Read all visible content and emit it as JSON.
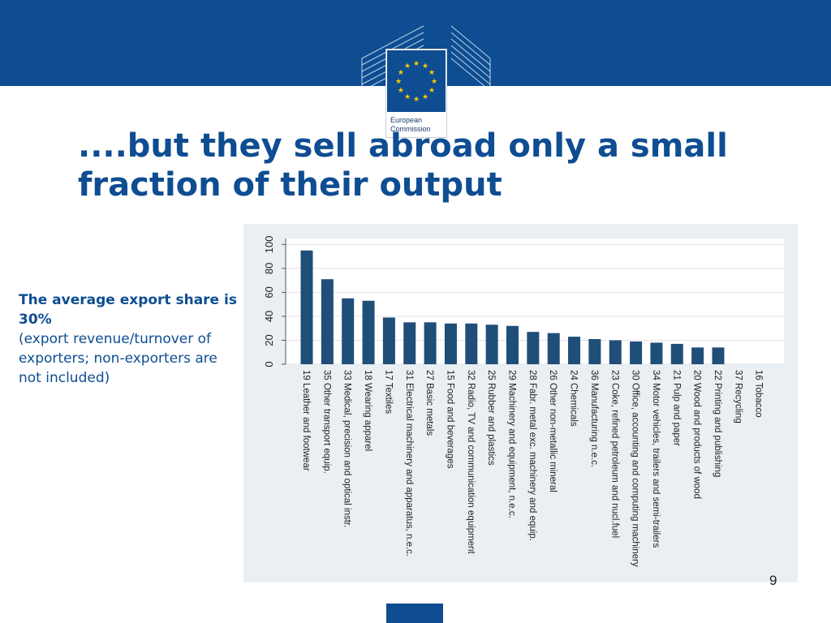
{
  "header": {
    "logo_icon": "eu-flag-icon",
    "logo_line1": "European",
    "logo_line2": "Commission",
    "band_color": "#0e4d92"
  },
  "slide": {
    "title": "....but they sell abroad only a small\nfraction of their output",
    "note_highlight": "The average export share is 30%",
    "note_detail": "(export revenue/turnover of exporters; non-exporters are not included)",
    "page_number": "9"
  },
  "chart_data": {
    "type": "bar",
    "categories": [
      "19 Leather and footwear",
      "35 Other transport equip.",
      "33 Medical, precision and optical instr.",
      "18 Wearing apparel",
      "17 Textiles",
      "31 Electrical machinery and apparatus, n.e.c.",
      "27 Basic metals",
      "15 Food and beverages",
      "32 Radio, TV and communication equipment",
      "25 Rubber and plastics",
      "29 Machinery and equipment, n.e.c.",
      "28 Fabr. metal exc. machinery and equip.",
      "26 Other non-metallic mineral",
      "24 Chemicals",
      "36 Manufacturing n.e.c.",
      "23 Coke, refined petroleum  and nucl.fuel",
      "30 Office, accounting and computing machinery",
      "34 Motor vehicles, trailers and semi-trailers",
      "21 Pulp and paper",
      "20 Wood and products of wood",
      "22 Printing and publishing",
      "37 Recycling",
      "16 Tobacco"
    ],
    "values": [
      95,
      71,
      55,
      53,
      39,
      35,
      35,
      34,
      34,
      33,
      32,
      27,
      26,
      23,
      21,
      20,
      19,
      18,
      17,
      14,
      14,
      0,
      0
    ],
    "y_ticks": [
      "0",
      "20",
      "40",
      "60",
      "80",
      "100"
    ],
    "ylim": [
      0,
      105
    ],
    "grid": true,
    "bar_color": "#1f4e79",
    "grid_color": "#e3e3e3"
  }
}
